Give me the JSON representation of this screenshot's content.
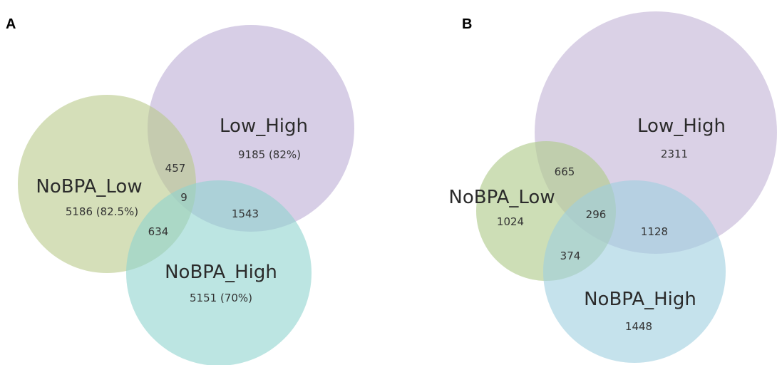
{
  "panels": {
    "a": {
      "letter": "A",
      "sets": {
        "nobpa_low": {
          "label": "NoBPA_Low",
          "unique": "5186 (82.5%)",
          "color": "#b9c98a"
        },
        "low_high": {
          "label": "Low_High",
          "unique": "9185 (82%)",
          "color": "#c9bddd"
        },
        "nobpa_high": {
          "label": "NoBPA_High",
          "unique": "5151 (70%)",
          "color": "#8fd3cf"
        }
      },
      "overlaps": {
        "nobpa_low_low_high": "457",
        "all_three": "9",
        "low_high_nobpa_high": "1543",
        "nobpa_low_nobpa_high": "634"
      }
    },
    "b": {
      "letter": "B",
      "sets": {
        "nobpa_low": {
          "label": "NoBPA_Low",
          "unique": "1024",
          "color": "#b2cc8f"
        },
        "low_high": {
          "label": "Low_High",
          "unique": "2311",
          "color": "#cdc2de"
        },
        "nobpa_high": {
          "label": "NoBPA_High",
          "unique": "1448",
          "color": "#9fcfe0"
        }
      },
      "overlaps": {
        "nobpa_low_low_high": "665",
        "all_three": "296",
        "low_high_nobpa_high": "1128",
        "nobpa_low_nobpa_high": "374"
      }
    }
  }
}
